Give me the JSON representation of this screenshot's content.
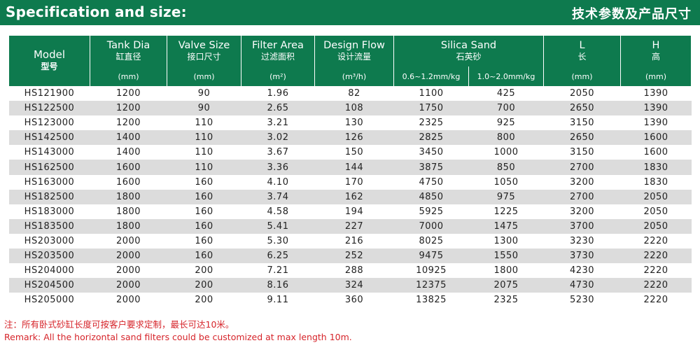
{
  "header": {
    "title_en": "Specification and size:",
    "title_cn": "技术参数及产品尺寸",
    "bar_color": "#0e7a4e"
  },
  "table": {
    "columns": {
      "model": {
        "en": "Model",
        "cn": "型号"
      },
      "tank_dia": {
        "en": "Tank Dia",
        "cn": "缸直径",
        "unit": "(mm)"
      },
      "valve_size": {
        "en": "Valve Size",
        "cn": "接口尺寸",
        "unit": "(mm)"
      },
      "filter_area": {
        "en": "Filter Area",
        "cn": "过滤面积",
        "unit": "(m²)"
      },
      "design_flow": {
        "en": "Design Flow",
        "cn": "设计流量",
        "unit": "(m³/h)"
      },
      "silica_sand": {
        "en": "Silica Sand",
        "cn": "石英砂",
        "unit_a": "0.6~1.2mm/kg",
        "unit_b": "1.0~2.0mm/kg"
      },
      "length": {
        "en": "L",
        "cn": "长",
        "unit": "(mm)"
      },
      "height": {
        "en": "H",
        "cn": "高",
        "unit": "(mm)"
      }
    },
    "rows": [
      [
        "HS121900",
        "1200",
        "90",
        "1.96",
        "82",
        "1100",
        "425",
        "2050",
        "1390"
      ],
      [
        "HS122500",
        "1200",
        "90",
        "2.65",
        "108",
        "1750",
        "700",
        "2650",
        "1390"
      ],
      [
        "HS123000",
        "1200",
        "110",
        "3.21",
        "130",
        "2325",
        "925",
        "3150",
        "1390"
      ],
      [
        "HS142500",
        "1400",
        "110",
        "3.02",
        "126",
        "2825",
        "800",
        "2650",
        "1600"
      ],
      [
        "HS143000",
        "1400",
        "110",
        "3.67",
        "150",
        "3450",
        "1000",
        "3150",
        "1600"
      ],
      [
        "HS162500",
        "1600",
        "110",
        "3.36",
        "144",
        "3875",
        "850",
        "2700",
        "1830"
      ],
      [
        "HS163000",
        "1600",
        "160",
        "4.10",
        "170",
        "4750",
        "1050",
        "3200",
        "1830"
      ],
      [
        "HS182500",
        "1800",
        "160",
        "3.74",
        "162",
        "4850",
        "975",
        "2700",
        "2050"
      ],
      [
        "HS183000",
        "1800",
        "160",
        "4.58",
        "194",
        "5925",
        "1225",
        "3200",
        "2050"
      ],
      [
        "HS183500",
        "1800",
        "160",
        "5.41",
        "227",
        "7000",
        "1475",
        "3700",
        "2050"
      ],
      [
        "HS203000",
        "2000",
        "160",
        "5.30",
        "216",
        "8025",
        "1300",
        "3230",
        "2220"
      ],
      [
        "HS203500",
        "2000",
        "160",
        "6.25",
        "252",
        "9475",
        "1550",
        "3730",
        "2220"
      ],
      [
        "HS204000",
        "2000",
        "200",
        "7.21",
        "288",
        "10925",
        "1800",
        "4230",
        "2220"
      ],
      [
        "HS204500",
        "2000",
        "200",
        "8.16",
        "324",
        "12375",
        "2075",
        "4730",
        "2220"
      ],
      [
        "HS205000",
        "2000",
        "200",
        "9.11",
        "360",
        "13825",
        "2325",
        "5230",
        "2220"
      ]
    ]
  },
  "remarks": {
    "cn": "注：所有卧式砂缸长度可按客户要求定制，最长可达10米。",
    "en": "Remark: All the horizontal sand filters could be customized at max length 10m.",
    "color": "#d6242a"
  }
}
